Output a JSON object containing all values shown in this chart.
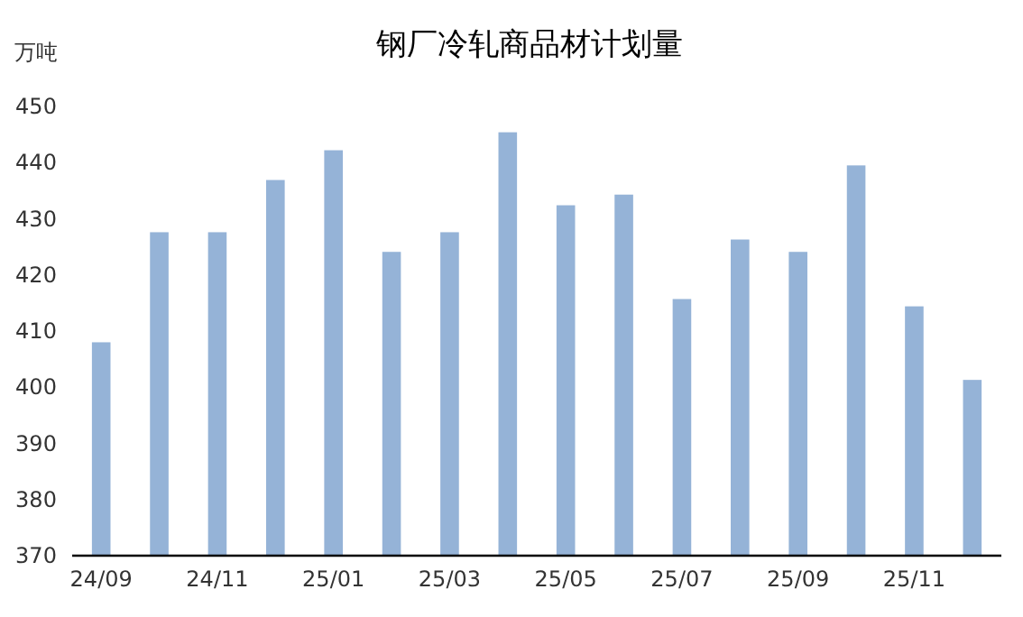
{
  "chart_data": {
    "type": "bar",
    "title": "钢厂冷轧商品材计划量",
    "ylabel": "万吨",
    "categories": [
      "24/09",
      null,
      "24/11",
      null,
      "25/01",
      null,
      "25/03",
      null,
      "25/05",
      null,
      "25/07",
      null,
      "25/09",
      null,
      "25/11",
      null
    ],
    "values": [
      408,
      427.6,
      427.6,
      436.9,
      442.2,
      424.1,
      427.6,
      445.4,
      432.4,
      434.3,
      415.7,
      426.3,
      424.1,
      439.5,
      414.4,
      401.3
    ],
    "color": "#95b3d7",
    "ylim": [
      370,
      450
    ],
    "yticks": [
      370,
      380,
      390,
      400,
      410,
      420,
      430,
      440,
      450
    ],
    "grid": false
  }
}
